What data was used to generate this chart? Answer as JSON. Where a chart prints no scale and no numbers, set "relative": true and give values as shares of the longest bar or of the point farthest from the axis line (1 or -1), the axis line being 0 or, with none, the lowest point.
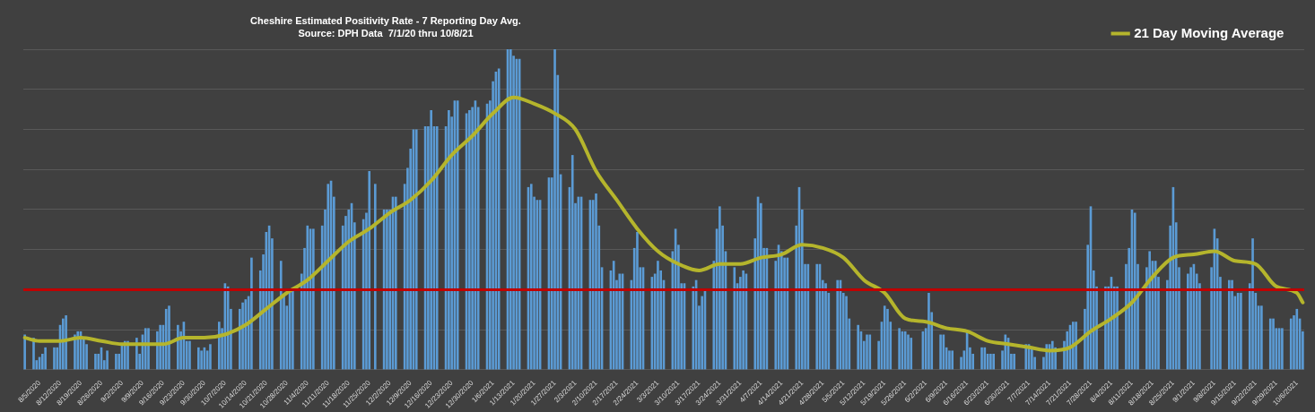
{
  "chart_data": {
    "type": "bar",
    "title": "Cheshire Estimated Positivity Rate - 7 Reporting Day Avg.",
    "subtitle": "Source: DPH Data  7/1/20 thru 10/8/21",
    "relative": true,
    "grid": "y",
    "legend": "top right",
    "categories": [
      null,
      null,
      null,
      null,
      null,
      "8/5/2020",
      null,
      null,
      null,
      null,
      null,
      null,
      "8/12/2020",
      null,
      null,
      null,
      null,
      null,
      null,
      "8/19/2020",
      null,
      null,
      null,
      null,
      null,
      null,
      "8/26/2020",
      null,
      null,
      null,
      null,
      null,
      null,
      "9/2/2020",
      null,
      null,
      null,
      null,
      null,
      null,
      "9/9/2020",
      null,
      null,
      null,
      null,
      null,
      null,
      "9/16/2020",
      null,
      null,
      null,
      null,
      null,
      null,
      "9/23/2020",
      null,
      null,
      null,
      null,
      null,
      null,
      "9/30/2020",
      null,
      null,
      null,
      null,
      null,
      null,
      "10/7/2020",
      null,
      null,
      null,
      null,
      null,
      null,
      "10/14/2020",
      null,
      null,
      null,
      null,
      null,
      null,
      "10/21/2020",
      null,
      null,
      null,
      null,
      null,
      null,
      "10/28/2020",
      null,
      null,
      null,
      null,
      null,
      null,
      "11/4/2020",
      null,
      null,
      null,
      null,
      null,
      null,
      "11/11/2020",
      null,
      null,
      null,
      null,
      null,
      null,
      "11/18/2020",
      null,
      null,
      null,
      null,
      null,
      null,
      "11/25/2020",
      null,
      null,
      null,
      null,
      null,
      null,
      "12/2/2020",
      null,
      null,
      null,
      null,
      null,
      null,
      "12/9/2020",
      null,
      null,
      null,
      null,
      null,
      null,
      "12/16/2020",
      null,
      null,
      null,
      null,
      null,
      null,
      "12/23/2020",
      null,
      null,
      null,
      null,
      null,
      null,
      "12/30/2020",
      null,
      null,
      null,
      null,
      null,
      null,
      "1/6/2021",
      null,
      null,
      null,
      null,
      null,
      null,
      "1/13/2021",
      null,
      null,
      null,
      null,
      null,
      null,
      "1/20/2021",
      null,
      null,
      null,
      null,
      null,
      null,
      "1/27/2021",
      null,
      null,
      null,
      null,
      null,
      null,
      "2/3/2021",
      null,
      null,
      null,
      null,
      null,
      null,
      "2/10/2021",
      null,
      null,
      null,
      null,
      null,
      null,
      "2/17/2021",
      null,
      null,
      null,
      null,
      null,
      null,
      "2/24/2021",
      null,
      null,
      null,
      null,
      null,
      null,
      "3/3/2021",
      null,
      null,
      null,
      null,
      null,
      null,
      "3/10/2021",
      null,
      null,
      null,
      null,
      null,
      null,
      "3/17/2021",
      null,
      null,
      null,
      null,
      null,
      null,
      "3/24/2021",
      null,
      null,
      null,
      null,
      null,
      null,
      "3/31/2021",
      null,
      null,
      null,
      null,
      null,
      null,
      "4/7/2021",
      null,
      null,
      null,
      null,
      null,
      null,
      "4/14/2021",
      null,
      null,
      null,
      null,
      null,
      null,
      "4/21/2021",
      null,
      null,
      null,
      null,
      null,
      null,
      "4/28/2021",
      null,
      null,
      null,
      null,
      null,
      null,
      "5/5/2021",
      null,
      null,
      null,
      null,
      null,
      null,
      "5/12/2021",
      null,
      null,
      null,
      null,
      null,
      null,
      "5/19/2021",
      null,
      null,
      null,
      null,
      null,
      null,
      "5/26/2021",
      null,
      null,
      null,
      null,
      null,
      null,
      "6/2/2021",
      null,
      null,
      null,
      null,
      null,
      null,
      "6/9/2021",
      null,
      null,
      null,
      null,
      null,
      null,
      "6/16/2021",
      null,
      null,
      null,
      null,
      null,
      null,
      "6/23/2021",
      null,
      null,
      null,
      null,
      null,
      null,
      "6/30/2021",
      null,
      null,
      null,
      null,
      null,
      null,
      "7/7/2021",
      null,
      null,
      null,
      null,
      null,
      null,
      "7/14/2021",
      null,
      null,
      null,
      null,
      null,
      null,
      "7/21/2021",
      null,
      null,
      null,
      null,
      null,
      null,
      "7/28/2021",
      null,
      null,
      null,
      null,
      null,
      null,
      "8/4/2021",
      null,
      null,
      null,
      null,
      null,
      null,
      "8/11/2021",
      null,
      null,
      null,
      null,
      null,
      null,
      "8/18/2021",
      null,
      null,
      null,
      null,
      null,
      null,
      "8/25/2021",
      null,
      null,
      null,
      null,
      null,
      null,
      "9/1/2021",
      null,
      null,
      null,
      null,
      null,
      null,
      "9/8/2021",
      null,
      null,
      null,
      null,
      null,
      null,
      "9/15/2021",
      null,
      null,
      null,
      null,
      null,
      null,
      "9/22/2021",
      null,
      null,
      null,
      null,
      null,
      null,
      "9/29/2021",
      null,
      null,
      null,
      null,
      null,
      null,
      "10/6/2021",
      null,
      null
    ],
    "series": [
      {
        "color": "#5b9bd5",
        "values": [
          0.11,
          null,
          null,
          0.1,
          0.03,
          0.04,
          0.05,
          0.07,
          null,
          null,
          0.07,
          0.07,
          0.14,
          0.16,
          0.17,
          null,
          null,
          0.11,
          0.12,
          0.12,
          0.1,
          0.08,
          null,
          null,
          0.05,
          0.05,
          0.07,
          0.03,
          0.06,
          null,
          null,
          0.05,
          0.05,
          0.08,
          0.09,
          0.09,
          null,
          null,
          0.1,
          0.05,
          0.11,
          0.13,
          0.13,
          null,
          null,
          0.12,
          0.14,
          0.14,
          0.19,
          0.2,
          null,
          null,
          0.14,
          0.12,
          0.15,
          0.09,
          0.09,
          null,
          null,
          0.07,
          0.06,
          0.07,
          0.06,
          0.08,
          null,
          null,
          0.15,
          0.13,
          0.27,
          0.26,
          0.19,
          null,
          null,
          0.19,
          0.21,
          0.22,
          0.23,
          0.35,
          null,
          null,
          0.31,
          0.36,
          0.43,
          0.45,
          0.41,
          null,
          null,
          0.34,
          0.23,
          0.2,
          0.25,
          0.25,
          null,
          null,
          0.3,
          0.38,
          0.45,
          0.44,
          0.44,
          null,
          null,
          0.45,
          0.5,
          0.58,
          0.59,
          0.54,
          null,
          null,
          0.45,
          0.48,
          0.5,
          0.52,
          0.46,
          null,
          null,
          0.47,
          0.49,
          0.62,
          null,
          0.58,
          null,
          null,
          0.5,
          0.5,
          0.5,
          0.54,
          0.54,
          null,
          null,
          0.58,
          0.63,
          0.69,
          0.75,
          0.75,
          null,
          null,
          0.76,
          0.76,
          0.81,
          0.76,
          0.76,
          null,
          null,
          0.76,
          0.81,
          0.79,
          0.84,
          0.84,
          null,
          null,
          0.8,
          0.81,
          0.82,
          0.84,
          0.82,
          null,
          null,
          0.83,
          0.84,
          0.9,
          0.93,
          0.94,
          null,
          null,
          1,
          1,
          0.98,
          0.97,
          0.97,
          null,
          null,
          0.57,
          0.58,
          0.54,
          0.53,
          0.53,
          null,
          null,
          0.6,
          0.6,
          1,
          0.92,
          0.61,
          null,
          null,
          0.57,
          0.67,
          0.52,
          0.54,
          0.54,
          null,
          null,
          0.53,
          0.53,
          0.55,
          0.45,
          0.32,
          null,
          null,
          0.31,
          0.34,
          0.28,
          0.3,
          0.3,
          null,
          null,
          0.28,
          0.38,
          0.43,
          0.32,
          0.32,
          null,
          null,
          0.29,
          0.3,
          0.34,
          0.31,
          0.28,
          null,
          null,
          0.37,
          0.44,
          0.39,
          0.27,
          0.27,
          null,
          null,
          0.26,
          0.28,
          0.2,
          0.23,
          0.25,
          null,
          null,
          0.34,
          0.44,
          0.51,
          0.45,
          0.37,
          null,
          null,
          0.32,
          0.27,
          0.29,
          0.31,
          0.3,
          null,
          null,
          0.41,
          0.54,
          0.52,
          0.38,
          0.38,
          null,
          null,
          0.34,
          0.39,
          0.37,
          0.35,
          0.35,
          null,
          null,
          0.45,
          0.57,
          0.5,
          0.33,
          0.33,
          null,
          null,
          0.33,
          0.33,
          0.28,
          0.27,
          0.24,
          null,
          null,
          0.28,
          0.28,
          0.24,
          0.23,
          0.16,
          null,
          null,
          0.14,
          0.12,
          0.09,
          0.11,
          0.11,
          null,
          null,
          0.09,
          0.15,
          0.2,
          0.19,
          0.15,
          null,
          null,
          0.13,
          0.12,
          0.12,
          0.11,
          0.1,
          null,
          null,
          null,
          0.12,
          0.13,
          0.24,
          0.18,
          null,
          null,
          0.11,
          0.11,
          0.07,
          0.06,
          0.06,
          null,
          null,
          0.04,
          0.06,
          0.12,
          0.07,
          0.05,
          null,
          null,
          0.07,
          0.07,
          0.05,
          0.05,
          0.05,
          null,
          null,
          0.06,
          0.11,
          0.1,
          0.05,
          0.05,
          null,
          null,
          null,
          0.08,
          0.08,
          0.07,
          0.04,
          null,
          null,
          0.04,
          0.08,
          0.08,
          0.09,
          0.07,
          null,
          null,
          0.09,
          0.12,
          0.14,
          0.15,
          0.15,
          null,
          null,
          0.19,
          0.39,
          0.51,
          0.31,
          0.26,
          null,
          null,
          0.26,
          0.26,
          0.29,
          0.26,
          0.26,
          null,
          null,
          0.33,
          0.38,
          0.5,
          0.49,
          0.33,
          null,
          null,
          0.32,
          0.37,
          0.34,
          0.34,
          0.29,
          null,
          null,
          0.28,
          0.45,
          0.57,
          0.46,
          0.32,
          null,
          null,
          0.3,
          0.32,
          0.33,
          0.3,
          0.27,
          null,
          null,
          null,
          0.32,
          0.44,
          0.41,
          0.29,
          null,
          null,
          0.28,
          0.28,
          0.23,
          0.24,
          0.24,
          null,
          null,
          0.27,
          0.41,
          0.24,
          0.2,
          0.2,
          null,
          null,
          0.16,
          0.16,
          0.13,
          0.13,
          0.13,
          null,
          null,
          0.16,
          0.17,
          0.19,
          0.16,
          0.12
        ]
      },
      {
        "type": "line",
        "name": "21 Day Moving Average",
        "color": "#b5b52c",
        "marker": "none",
        "values": [
          0.1,
          null,
          null,
          null,
          null,
          0.09,
          null,
          null,
          null,
          null,
          null,
          null,
          0.09,
          null,
          null,
          null,
          null,
          null,
          null,
          0.1,
          null,
          null,
          null,
          null,
          null,
          null,
          0.09,
          null,
          null,
          null,
          null,
          null,
          null,
          0.08,
          null,
          null,
          null,
          null,
          null,
          null,
          0.08,
          null,
          null,
          null,
          null,
          null,
          null,
          0.08,
          null,
          null,
          null,
          null,
          null,
          null,
          0.1,
          null,
          null,
          null,
          null,
          null,
          null,
          0.1,
          null,
          null,
          null,
          null,
          null,
          null,
          0.11,
          null,
          null,
          null,
          null,
          null,
          null,
          0.14,
          null,
          null,
          null,
          null,
          null,
          null,
          0.19,
          null,
          null,
          null,
          null,
          null,
          null,
          0.24,
          null,
          null,
          null,
          null,
          null,
          null,
          0.28,
          null,
          null,
          null,
          null,
          null,
          null,
          0.34,
          null,
          null,
          null,
          null,
          null,
          null,
          0.4,
          null,
          null,
          null,
          null,
          null,
          null,
          0.44,
          null,
          null,
          null,
          null,
          null,
          null,
          0.49,
          null,
          null,
          null,
          null,
          null,
          null,
          0.53,
          null,
          null,
          null,
          null,
          null,
          null,
          0.59,
          null,
          null,
          null,
          null,
          null,
          null,
          0.67,
          null,
          null,
          null,
          null,
          null,
          null,
          0.73,
          null,
          null,
          null,
          null,
          null,
          null,
          0.8,
          null,
          null,
          null,
          null,
          null,
          null,
          0.85,
          null,
          null,
          null,
          null,
          null,
          null,
          0.83,
          null,
          null,
          null,
          null,
          null,
          null,
          0.8,
          null,
          null,
          null,
          null,
          null,
          null,
          0.75,
          null,
          null,
          null,
          null,
          null,
          null,
          0.62,
          null,
          null,
          null,
          null,
          null,
          null,
          0.53,
          null,
          null,
          null,
          null,
          null,
          null,
          0.44,
          null,
          null,
          null,
          null,
          null,
          null,
          0.37,
          null,
          null,
          null,
          null,
          null,
          null,
          0.33,
          null,
          null,
          null,
          null,
          null,
          null,
          0.31,
          null,
          null,
          null,
          null,
          null,
          null,
          0.33,
          null,
          null,
          null,
          null,
          null,
          null,
          0.33,
          null,
          null,
          null,
          null,
          null,
          null,
          0.35,
          null,
          null,
          null,
          null,
          null,
          null,
          0.36,
          null,
          null,
          null,
          null,
          null,
          null,
          0.39,
          null,
          null,
          null,
          null,
          null,
          null,
          0.38,
          null,
          null,
          null,
          null,
          null,
          null,
          0.35,
          null,
          null,
          null,
          null,
          null,
          null,
          0.28,
          null,
          null,
          null,
          null,
          null,
          null,
          0.24,
          null,
          null,
          null,
          null,
          null,
          null,
          0.16,
          null,
          null,
          null,
          null,
          null,
          null,
          0.15,
          null,
          null,
          null,
          null,
          null,
          null,
          0.13,
          null,
          null,
          null,
          null,
          null,
          null,
          0.12,
          null,
          null,
          null,
          null,
          null,
          null,
          0.09,
          null,
          null,
          null,
          null,
          null,
          null,
          0.08,
          null,
          null,
          null,
          null,
          null,
          null,
          0.07,
          null,
          null,
          null,
          null,
          null,
          null,
          0.06,
          null,
          null,
          null,
          null,
          null,
          null,
          0.07,
          null,
          null,
          null,
          null,
          null,
          null,
          0.12,
          null,
          null,
          null,
          null,
          null,
          null,
          0.16,
          null,
          null,
          null,
          null,
          null,
          null,
          0.21,
          null,
          null,
          null,
          null,
          null,
          null,
          0.29,
          null,
          null,
          null,
          null,
          null,
          null,
          0.35,
          null,
          null,
          null,
          null,
          null,
          null,
          0.36,
          null,
          null,
          null,
          null,
          null,
          null,
          0.37,
          null,
          null,
          null,
          null,
          null,
          null,
          0.34,
          null,
          null,
          null,
          null,
          null,
          null,
          0.33,
          null,
          null,
          null,
          null,
          null,
          null,
          0.26,
          null,
          null,
          null,
          null,
          null,
          null,
          0.24,
          null,
          0.21
        ]
      }
    ],
    "ref_lines": [
      {
        "axis": "y",
        "value": 0.25,
        "color": "#c00000"
      }
    ]
  }
}
